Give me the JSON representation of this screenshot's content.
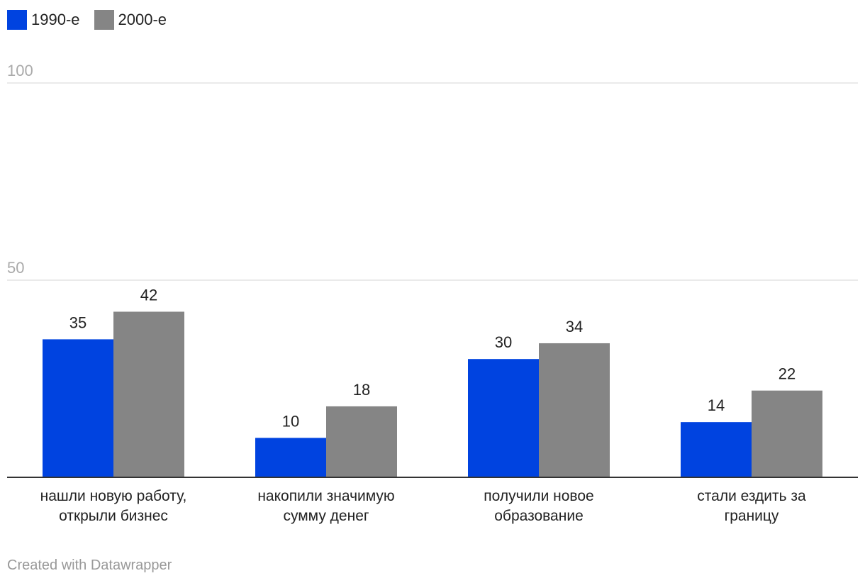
{
  "chart_data": {
    "type": "bar",
    "categories": [
      [
        "нашли новую работу,",
        "открыли бизнес"
      ],
      [
        "накопили значимую",
        "сумму денег"
      ],
      [
        "получили новое",
        "образование"
      ],
      [
        "стали ездить за",
        "границу"
      ]
    ],
    "series": [
      {
        "name": "1990-е",
        "color": "#0043e0",
        "values": [
          35,
          10,
          30,
          14
        ]
      },
      {
        "name": "2000-е",
        "color": "#858585",
        "values": [
          42,
          18,
          34,
          22
        ]
      }
    ],
    "ylim": [
      0,
      100
    ],
    "yticks": [
      50,
      100
    ],
    "grid": true,
    "legend": "top-left",
    "title": "",
    "xlabel": "",
    "ylabel": ""
  },
  "credit": "Created with Datawrapper"
}
